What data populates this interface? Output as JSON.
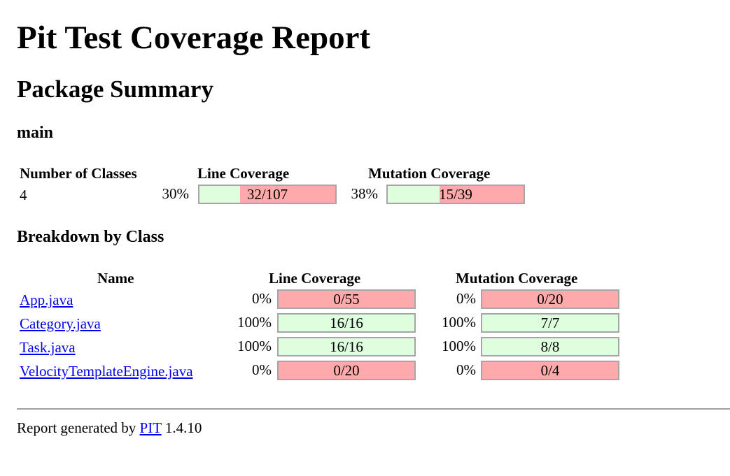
{
  "title": "Pit Test Coverage Report",
  "package_summary": {
    "heading": "Package Summary",
    "package_name": "main",
    "headers": {
      "classes": "Number of Classes",
      "line": "Line Coverage",
      "mutation": "Mutation Coverage"
    },
    "row": {
      "classes": "4",
      "line_pct": "30%",
      "line_label": "32/107",
      "line_fraction": 0.3,
      "mutation_pct": "38%",
      "mutation_label": "15/39",
      "mutation_fraction": 0.38
    }
  },
  "breakdown": {
    "heading": "Breakdown by Class",
    "headers": {
      "name": "Name",
      "line": "Line Coverage",
      "mutation": "Mutation Coverage"
    },
    "rows": [
      {
        "name": "App.java",
        "line_pct": "0%",
        "line_label": "0/55",
        "line_fraction": 0,
        "mutation_pct": "0%",
        "mutation_label": "0/20",
        "mutation_fraction": 0
      },
      {
        "name": "Category.java",
        "line_pct": "100%",
        "line_label": "16/16",
        "line_fraction": 1,
        "mutation_pct": "100%",
        "mutation_label": "7/7",
        "mutation_fraction": 1
      },
      {
        "name": "Task.java",
        "line_pct": "100%",
        "line_label": "16/16",
        "line_fraction": 1,
        "mutation_pct": "100%",
        "mutation_label": "8/8",
        "mutation_fraction": 1
      },
      {
        "name": "VelocityTemplateEngine.java",
        "line_pct": "0%",
        "line_label": "0/20",
        "line_fraction": 0,
        "mutation_pct": "0%",
        "mutation_label": "0/4",
        "mutation_fraction": 0
      }
    ]
  },
  "footer": {
    "prefix": "Report generated by",
    "link": "PIT",
    "version": "1.4.10"
  },
  "colors": {
    "covered": "#ddffdd",
    "uncovered": "#ffaaaa",
    "link": "#0000ee"
  }
}
